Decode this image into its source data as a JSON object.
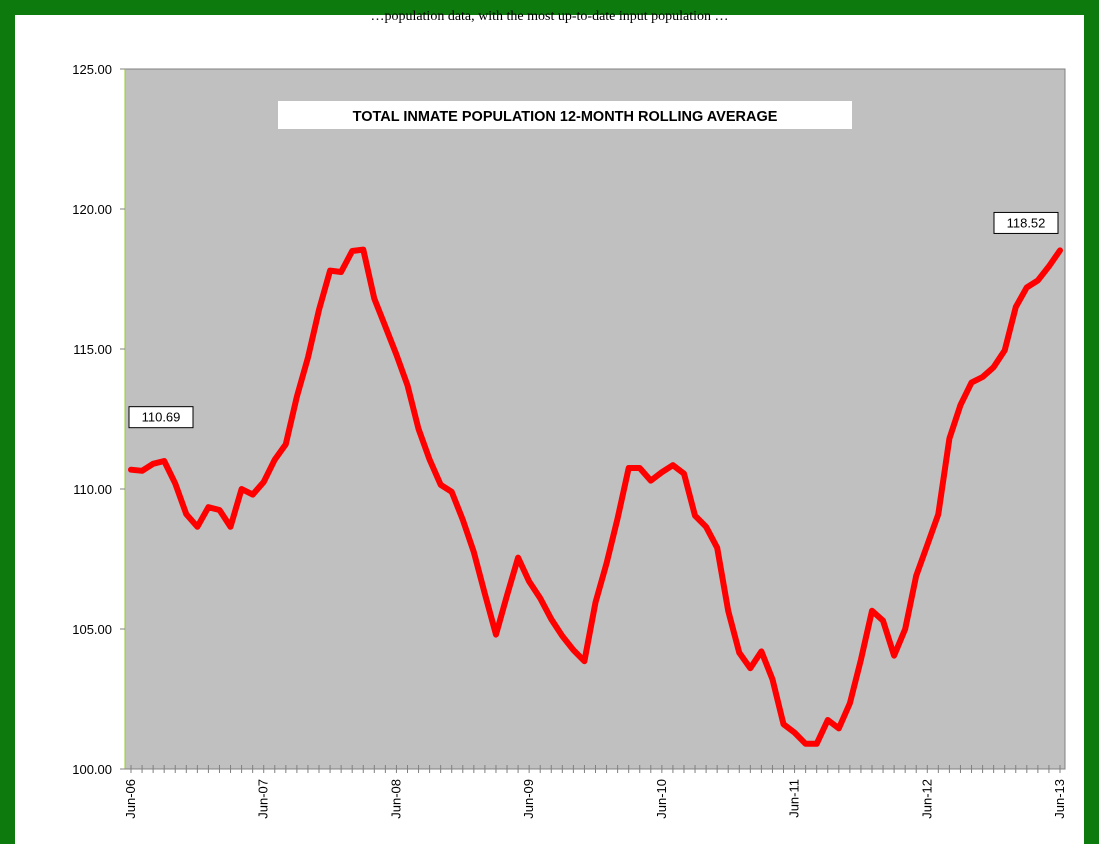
{
  "header_caption": "…population data, with the most up-to-date input population …",
  "chart_data": {
    "type": "line",
    "title": "TOTAL INMATE POPULATION 12-MONTH ROLLING  AVERAGE",
    "xlabel": "",
    "ylabel": "",
    "ylim": [
      100,
      125
    ],
    "y_ticks": [
      "100.00",
      "105.00",
      "110.00",
      "115.00",
      "120.00",
      "125.00"
    ],
    "x_tick_labels": [
      {
        "label": "Jun-06",
        "index": 0
      },
      {
        "label": "Jun-07",
        "index": 12
      },
      {
        "label": "Jun-08",
        "index": 24
      },
      {
        "label": "Jun-09",
        "index": 36
      },
      {
        "label": "Jun-10",
        "index": 48
      },
      {
        "label": "Jun-11",
        "index": 60
      },
      {
        "label": "Jun-12",
        "index": 72
      },
      {
        "label": "Jun-13",
        "index": 84
      }
    ],
    "grid": false,
    "series": [
      {
        "color": "#ff0000",
        "values": [
          110.69,
          110.65,
          110.9,
          111.0,
          110.2,
          109.1,
          108.65,
          109.35,
          109.25,
          108.65,
          110.0,
          109.8,
          110.25,
          111.05,
          111.6,
          113.3,
          114.7,
          116.4,
          117.8,
          117.75,
          118.5,
          118.55,
          116.8,
          115.8,
          114.8,
          113.7,
          112.15,
          111.05,
          110.15,
          109.9,
          108.9,
          107.75,
          106.25,
          104.8,
          106.2,
          107.55,
          106.7,
          106.1,
          105.35,
          104.75,
          104.25,
          103.85,
          105.95,
          107.35,
          108.95,
          110.75,
          110.75,
          110.3,
          110.6,
          110.85,
          110.55,
          109.05,
          108.65,
          107.9,
          105.65,
          104.15,
          103.6,
          104.2,
          103.2,
          101.6,
          101.3,
          100.9,
          100.9,
          101.75,
          101.45,
          102.35,
          103.9,
          105.65,
          105.3,
          104.05,
          105.0,
          106.9,
          108.0,
          109.1,
          111.8,
          113.0,
          113.8,
          114.0,
          114.35,
          114.95,
          116.5,
          117.2,
          117.45,
          117.95,
          118.52
        ]
      }
    ],
    "data_labels": [
      {
        "text": "110.69",
        "index": 0
      },
      {
        "text": "118.52",
        "index": 84
      }
    ],
    "colors": {
      "plot_background": "#c0c0c0",
      "line": "#ff0000",
      "frame": "#0c7a0c",
      "axis": "#808080"
    }
  }
}
